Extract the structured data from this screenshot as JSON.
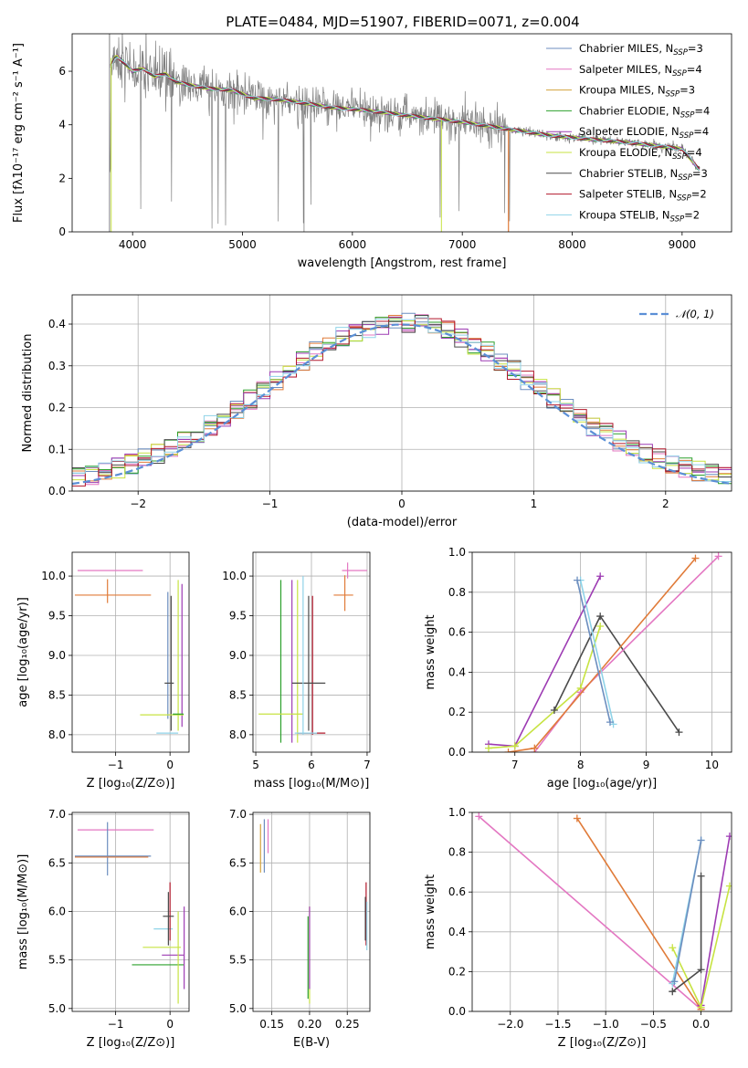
{
  "title": "PLATE=0484, MJD=51907, FIBERID=0071, z=0.004",
  "colors": {
    "Chabrier MILES": "#6c8ebf",
    "Salpeter MILES": "#e377c2",
    "Kroupa MILES": "#d2a23c",
    "Chabrier ELODIE": "#2ca02c",
    "Salpeter ELODIE": "#9d3bb3",
    "Kroupa ELODIE": "#c7e342",
    "Chabrier STELIB": "#4a4a4a",
    "Salpeter STELIB": "#b2182b",
    "Kroupa STELIB": "#8fd3e8",
    "data": "#808080",
    "gauss": "#5b8fd6",
    "orange": "#e07b39"
  },
  "chart_data": [
    {
      "id": "spectrum",
      "type": "line",
      "title": "PLATE=0484, MJD=51907, FIBERID=0071, z=0.004",
      "xlabel": "wavelength [Angstrom, rest frame]",
      "ylabel": "Flux [fλ10⁻¹⁷ erg cm⁻² s⁻¹ A⁻¹]",
      "xlim": [
        3450,
        9450
      ],
      "ylim": [
        0,
        7.4
      ],
      "xticks": [
        4000,
        5000,
        6000,
        7000,
        8000,
        9000
      ],
      "yticks": [
        0,
        2,
        4,
        6
      ],
      "legend": [
        "Chabrier MILES, N_SSP=3",
        "Salpeter MILES, N_SSP=4",
        "Kroupa MILES, N_SSP=3",
        "Chabrier ELODIE, N_SSP=4",
        "Salpeter ELODIE, N_SSP=4",
        "Kroupa ELODIE, N_SSP=4",
        "Chabrier STELIB, N_SSP=3",
        "Salpeter STELIB, N_SSP=2",
        "Kroupa STELIB, N_SSP=2"
      ],
      "legend_placement": "right",
      "model_continuum": {
        "x": [
          3800,
          3850,
          3900,
          4000,
          4100,
          4200,
          4300,
          4400,
          4500,
          4700,
          4900,
          5100,
          5300,
          5500,
          5800,
          6100,
          6400,
          6700,
          7000,
          7400,
          7800,
          8200,
          8600,
          9000,
          9150
        ],
        "y": [
          6.2,
          6.6,
          6.4,
          6.0,
          6.1,
          5.8,
          5.9,
          5.6,
          5.5,
          5.35,
          5.3,
          5.0,
          4.95,
          4.85,
          4.65,
          4.55,
          4.4,
          4.25,
          4.1,
          3.85,
          3.6,
          3.45,
          3.3,
          3.1,
          2.35
        ]
      },
      "grid": false
    },
    {
      "id": "residual_hist",
      "type": "line",
      "xlabel": "(data-model)/error",
      "ylabel": "Normed distribution",
      "xlim": [
        -2.5,
        2.5
      ],
      "ylim": [
        0,
        0.47
      ],
      "xticks": [
        -2,
        -1,
        0,
        1,
        2
      ],
      "yticks": [
        0.0,
        0.1,
        0.2,
        0.3,
        0.4
      ],
      "legend": [
        "𝒩(0, 1)"
      ],
      "legend_placement": "top-right",
      "grid": true,
      "gauss": {
        "mu": 0,
        "sigma": 1
      }
    },
    {
      "id": "age_vs_Z",
      "type": "scatter",
      "xlabel": "Z [log₁₀(Z/Z⊙)]",
      "ylabel": "age  [log₁₀(age/yr)]",
      "xlim": [
        -1.8,
        0.35
      ],
      "ylim": [
        7.78,
        10.3
      ],
      "xticks": [
        -1,
        0
      ],
      "yticks": [
        8.0,
        8.5,
        9.0,
        9.5,
        10.0
      ],
      "grid": true
    },
    {
      "id": "age_vs_mass",
      "type": "scatter",
      "xlabel": "mass [log₁₀(M/M⊙)]",
      "xlim": [
        4.95,
        7.05
      ],
      "ylim": [
        7.78,
        10.3
      ],
      "xticks": [
        5,
        6,
        7
      ],
      "yticks": [
        8.0,
        8.5,
        9.0,
        9.5,
        10.0
      ],
      "grid": true
    },
    {
      "id": "massweight_vs_age",
      "type": "line",
      "xlabel": "age  [log₁₀(age/yr)]",
      "ylabel": "mass weight",
      "xlim": [
        6.35,
        10.3
      ],
      "ylim": [
        0,
        1.0
      ],
      "xticks": [
        7,
        8,
        9,
        10
      ],
      "yticks": [
        0.0,
        0.2,
        0.4,
        0.6,
        0.8,
        1.0
      ],
      "grid": true,
      "series": [
        {
          "model": "Salpeter ELODIE",
          "x": [
            6.6,
            7.0,
            8.3
          ],
          "y": [
            0.04,
            0.03,
            0.88
          ]
        },
        {
          "model": "Kroupa ELODIE",
          "x": [
            6.6,
            7.0,
            8.0,
            8.3
          ],
          "y": [
            0.02,
            0.03,
            0.32,
            0.63
          ]
        },
        {
          "model": "Chabrier STELIB",
          "x": [
            7.6,
            8.3,
            9.5
          ],
          "y": [
            0.21,
            0.68,
            0.1
          ]
        },
        {
          "model": "Salpeter MILES",
          "x": [
            7.3,
            8.0,
            10.1
          ],
          "y": [
            0.0,
            0.3,
            0.98
          ]
        },
        {
          "model": "Kroupa MILES",
          "x": [
            6.9,
            7.3,
            9.75
          ],
          "y": [
            0.0,
            0.02,
            0.97
          ]
        },
        {
          "model": "Kroupa STELIB",
          "x": [
            8.0,
            8.5
          ],
          "y": [
            0.86,
            0.14
          ]
        },
        {
          "model": "Chabrier MILES",
          "x": [
            7.95,
            8.45
          ],
          "y": [
            0.86,
            0.15
          ]
        }
      ]
    },
    {
      "id": "mass_vs_Z",
      "type": "scatter",
      "xlabel": "Z [log₁₀(Z/Z⊙)]",
      "ylabel": "mass [log₁₀(M/M⊙)]",
      "xlim": [
        -1.8,
        0.35
      ],
      "ylim": [
        4.97,
        7.02
      ],
      "xticks": [
        -1,
        0
      ],
      "yticks": [
        5.0,
        5.5,
        6.0,
        6.5,
        7.0
      ],
      "grid": true
    },
    {
      "id": "mass_vs_EBV",
      "type": "scatter",
      "xlabel": "E(B-V)",
      "xlim": [
        0.125,
        0.28
      ],
      "ylim": [
        4.97,
        7.02
      ],
      "xticks": [
        0.15,
        0.2,
        0.25
      ],
      "yticks": [
        5.0,
        5.5,
        6.0,
        6.5,
        7.0
      ],
      "grid": true
    },
    {
      "id": "massweight_vs_Z",
      "type": "line",
      "xlabel": "Z [log₁₀(Z/Z⊙)]",
      "ylabel": "mass weight",
      "xlim": [
        -2.4,
        0.32
      ],
      "ylim": [
        0,
        1.0
      ],
      "xticks": [
        -2.0,
        -1.5,
        -1.0,
        -0.5,
        0.0
      ],
      "yticks": [
        0.0,
        0.2,
        0.4,
        0.6,
        0.8,
        1.0
      ],
      "grid": true,
      "series": [
        {
          "model": "Salpeter MILES",
          "x": [
            -2.33,
            0.0
          ],
          "y": [
            0.98,
            0.01
          ]
        },
        {
          "model": "Kroupa MILES",
          "x": [
            -1.3,
            0.0
          ],
          "y": [
            0.97,
            0.01
          ]
        },
        {
          "model": "Salpeter ELODIE",
          "x": [
            0.0,
            0.3
          ],
          "y": [
            0.03,
            0.88
          ]
        },
        {
          "model": "Kroupa ELODIE",
          "x": [
            -0.3,
            0.0,
            0.3
          ],
          "y": [
            0.32,
            0.02,
            0.63
          ]
        },
        {
          "model": "Chabrier STELIB",
          "x": [
            -0.3,
            0.0,
            0.0
          ],
          "y": [
            0.1,
            0.21,
            0.68
          ]
        },
        {
          "model": "Kroupa STELIB",
          "x": [
            -0.3,
            0.0
          ],
          "y": [
            0.14,
            0.86
          ]
        },
        {
          "model": "Chabrier MILES",
          "x": [
            -0.28,
            0.0
          ],
          "y": [
            0.15,
            0.86
          ]
        }
      ]
    }
  ]
}
